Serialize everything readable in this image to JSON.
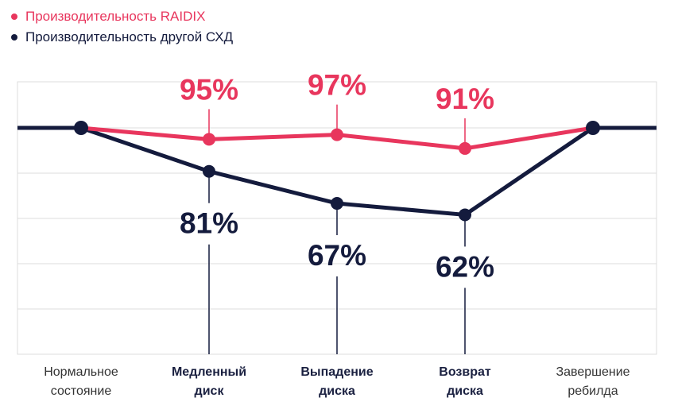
{
  "chart_data": {
    "type": "line",
    "categories": [
      [
        "Нормальное",
        "состояние"
      ],
      [
        "Медленный",
        "диск"
      ],
      [
        "Выпадение",
        "диска"
      ],
      [
        "Возврат",
        "диска"
      ],
      [
        "Завершение",
        "ребилда"
      ]
    ],
    "bold_categories": [
      1,
      2,
      3
    ],
    "series": [
      {
        "name": "Производительность RAIDIX",
        "values": [
          100,
          95,
          97,
          91,
          100
        ],
        "labels": [
          "",
          "95%",
          "97%",
          "91%",
          ""
        ],
        "color": "#e8365d"
      },
      {
        "name": "Производительность другой СХД",
        "values": [
          100,
          81,
          67,
          62,
          100
        ],
        "labels": [
          "",
          "81%",
          "67%",
          "62%",
          ""
        ],
        "color": "#141b3d"
      }
    ],
    "ylim": [
      0,
      100
    ],
    "grid": true,
    "legend": "top-left",
    "title": "",
    "xlabel": "",
    "ylabel": ""
  }
}
